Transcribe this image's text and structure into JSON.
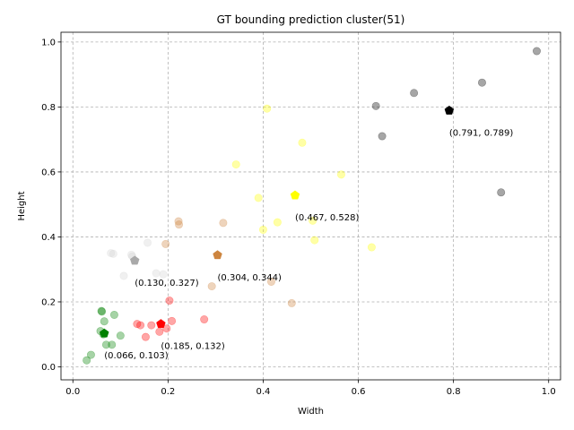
{
  "chart_data": {
    "type": "scatter",
    "title": "GT bounding prediction cluster(51)",
    "xlabel": "Width",
    "ylabel": "Height",
    "xlim": [
      -0.025,
      1.025
    ],
    "ylim": [
      -0.04,
      1.03
    ],
    "xticks": [
      0.0,
      0.2,
      0.4,
      0.6,
      0.8,
      1.0
    ],
    "xtick_labels": [
      "0.0",
      "0.2",
      "0.4",
      "0.6",
      "0.8",
      "1.0"
    ],
    "yticks": [
      0.0,
      0.2,
      0.4,
      0.6,
      0.8,
      1.0
    ],
    "ytick_labels": [
      "0.0",
      "0.2",
      "0.4",
      "0.6",
      "0.8",
      "1.0"
    ],
    "grid": true,
    "clusters": [
      {
        "name": "green",
        "color": "#008000",
        "points": [
          [
            0.029,
            0.02
          ],
          [
            0.038,
            0.037
          ],
          [
            0.058,
            0.11
          ],
          [
            0.06,
            0.172
          ],
          [
            0.061,
            0.17
          ],
          [
            0.066,
            0.14
          ],
          [
            0.07,
            0.068
          ],
          [
            0.082,
            0.068
          ],
          [
            0.087,
            0.16
          ],
          [
            0.1,
            0.096
          ],
          [
            0.064,
            0.1
          ]
        ],
        "centroid": [
          0.066,
          0.103
        ],
        "centroid_label": "(0.066, 0.103)"
      },
      {
        "name": "red",
        "color": "#ff0000",
        "points": [
          [
            0.135,
            0.132
          ],
          [
            0.142,
            0.128
          ],
          [
            0.153,
            0.092
          ],
          [
            0.165,
            0.128
          ],
          [
            0.182,
            0.108
          ],
          [
            0.197,
            0.118
          ],
          [
            0.203,
            0.204
          ],
          [
            0.208,
            0.141
          ],
          [
            0.276,
            0.146
          ]
        ],
        "centroid": [
          0.185,
          0.132
        ],
        "centroid_label": "(0.185, 0.132)"
      },
      {
        "name": "lightgray",
        "color": "#d3d3d3",
        "points": [
          [
            0.08,
            0.35
          ],
          [
            0.085,
            0.348
          ],
          [
            0.107,
            0.28
          ],
          [
            0.123,
            0.345
          ],
          [
            0.125,
            0.34
          ],
          [
            0.157,
            0.382
          ],
          [
            0.175,
            0.288
          ],
          [
            0.19,
            0.285
          ]
        ],
        "centroid": [
          0.13,
          0.327
        ],
        "centroid_label": "(0.130, 0.327)"
      },
      {
        "name": "peru",
        "color": "#cd853f",
        "points": [
          [
            0.195,
            0.378
          ],
          [
            0.222,
            0.448
          ],
          [
            0.223,
            0.438
          ],
          [
            0.292,
            0.248
          ],
          [
            0.316,
            0.443
          ],
          [
            0.417,
            0.262
          ],
          [
            0.46,
            0.196
          ]
        ],
        "centroid": [
          0.304,
          0.344
        ],
        "centroid_label": "(0.304, 0.344)"
      },
      {
        "name": "yellow",
        "color": "#ffff00",
        "points": [
          [
            0.343,
            0.623
          ],
          [
            0.39,
            0.52
          ],
          [
            0.4,
            0.422
          ],
          [
            0.408,
            0.795
          ],
          [
            0.43,
            0.445
          ],
          [
            0.482,
            0.69
          ],
          [
            0.504,
            0.45
          ],
          [
            0.508,
            0.39
          ],
          [
            0.564,
            0.592
          ],
          [
            0.628,
            0.368
          ]
        ],
        "centroid": [
          0.467,
          0.528
        ],
        "centroid_label": "(0.467, 0.528)"
      },
      {
        "name": "gray",
        "color": "#000000",
        "points": [
          [
            0.637,
            0.803
          ],
          [
            0.65,
            0.71
          ],
          [
            0.717,
            0.843
          ],
          [
            0.86,
            0.875
          ],
          [
            0.9,
            0.537
          ],
          [
            0.975,
            0.972
          ]
        ],
        "centroid": [
          0.791,
          0.789
        ],
        "centroid_label": "(0.791, 0.789)"
      }
    ]
  }
}
